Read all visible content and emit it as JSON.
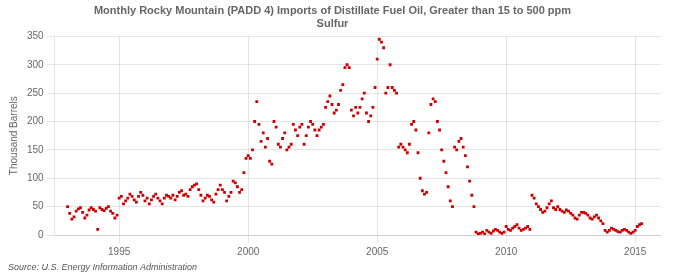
{
  "chart_data": {
    "type": "scatter",
    "title": "Monthly Rocky Mountain (PADD 4) Imports of Distillate Fuel Oil, Greater than 15 to 500 ppm\nSulfur",
    "ylabel": "Thousand Barrels",
    "source": "Source: U.S. Energy Information Administration",
    "color": "#cc0000",
    "marker": "square",
    "grid": true,
    "xlim": [
      1992.5,
      2016.0
    ],
    "ylim": [
      0,
      350
    ],
    "xticks": [
      1995,
      2000,
      2005,
      2010,
      2015
    ],
    "yticks": [
      0,
      50,
      100,
      150,
      200,
      250,
      300,
      350
    ],
    "x": [
      1993.0,
      1993.083,
      1993.167,
      1993.25,
      1993.333,
      1993.417,
      1993.5,
      1993.583,
      1993.667,
      1993.75,
      1993.833,
      1993.917,
      1994.0,
      1994.083,
      1994.167,
      1994.25,
      1994.333,
      1994.417,
      1994.5,
      1994.583,
      1994.667,
      1994.75,
      1994.833,
      1994.917,
      1995.0,
      1995.083,
      1995.167,
      1995.25,
      1995.333,
      1995.417,
      1995.5,
      1995.583,
      1995.667,
      1995.75,
      1995.833,
      1995.917,
      1996.0,
      1996.083,
      1996.167,
      1996.25,
      1996.333,
      1996.417,
      1996.5,
      1996.583,
      1996.667,
      1996.75,
      1996.833,
      1996.917,
      1997.0,
      1997.083,
      1997.167,
      1997.25,
      1997.333,
      1997.417,
      1997.5,
      1997.583,
      1997.667,
      1997.75,
      1997.833,
      1997.917,
      1998.0,
      1998.083,
      1998.167,
      1998.25,
      1998.333,
      1998.417,
      1998.5,
      1998.583,
      1998.667,
      1998.75,
      1998.833,
      1998.917,
      1999.0,
      1999.083,
      1999.167,
      1999.25,
      1999.333,
      1999.417,
      1999.5,
      1999.583,
      1999.667,
      1999.75,
      1999.833,
      1999.917,
      2000.0,
      2000.083,
      2000.167,
      2000.25,
      2000.333,
      2000.417,
      2000.5,
      2000.583,
      2000.667,
      2000.75,
      2000.833,
      2000.917,
      2001.0,
      2001.083,
      2001.167,
      2001.25,
      2001.333,
      2001.417,
      2001.5,
      2001.583,
      2001.667,
      2001.75,
      2001.833,
      2001.917,
      2002.0,
      2002.083,
      2002.167,
      2002.25,
      2002.333,
      2002.417,
      2002.5,
      2002.583,
      2002.667,
      2002.75,
      2002.833,
      2002.917,
      2003.0,
      2003.083,
      2003.167,
      2003.25,
      2003.333,
      2003.417,
      2003.5,
      2003.583,
      2003.667,
      2003.75,
      2003.833,
      2003.917,
      2004.0,
      2004.083,
      2004.167,
      2004.25,
      2004.333,
      2004.417,
      2004.5,
      2004.583,
      2004.667,
      2004.75,
      2004.833,
      2004.917,
      2005.0,
      2005.083,
      2005.167,
      2005.25,
      2005.333,
      2005.417,
      2005.5,
      2005.583,
      2005.667,
      2005.75,
      2005.833,
      2005.917,
      2006.0,
      2006.083,
      2006.167,
      2006.25,
      2006.333,
      2006.417,
      2006.5,
      2006.583,
      2006.667,
      2006.75,
      2006.833,
      2006.917,
      2007.0,
      2007.083,
      2007.167,
      2007.25,
      2007.333,
      2007.417,
      2007.5,
      2007.583,
      2007.667,
      2007.75,
      2007.833,
      2007.917,
      2008.0,
      2008.083,
      2008.167,
      2008.25,
      2008.333,
      2008.417,
      2008.5,
      2008.583,
      2008.667,
      2008.75,
      2008.833,
      2008.917,
      2009.0,
      2009.083,
      2009.167,
      2009.25,
      2009.333,
      2009.417,
      2009.5,
      2009.583,
      2009.667,
      2009.75,
      2009.833,
      2009.917,
      2010.0,
      2010.083,
      2010.167,
      2010.25,
      2010.333,
      2010.417,
      2010.5,
      2010.583,
      2010.667,
      2010.75,
      2010.833,
      2010.917,
      2011.0,
      2011.083,
      2011.167,
      2011.25,
      2011.333,
      2011.417,
      2011.5,
      2011.583,
      2011.667,
      2011.75,
      2011.833,
      2011.917,
      2012.0,
      2012.083,
      2012.167,
      2012.25,
      2012.333,
      2012.417,
      2012.5,
      2012.583,
      2012.667,
      2012.75,
      2012.833,
      2012.917,
      2013.0,
      2013.083,
      2013.167,
      2013.25,
      2013.333,
      2013.417,
      2013.5,
      2013.583,
      2013.667,
      2013.75,
      2013.833,
      2013.917,
      2014.0,
      2014.083,
      2014.167,
      2014.25,
      2014.333,
      2014.417,
      2014.5,
      2014.583,
      2014.667,
      2014.75,
      2014.833,
      2014.917,
      2015.0,
      2015.083,
      2015.167,
      2015.25
    ],
    "values": [
      50,
      38,
      28,
      32,
      42,
      46,
      48,
      40,
      30,
      35,
      44,
      48,
      45,
      42,
      10,
      48,
      45,
      43,
      47,
      50,
      42,
      38,
      30,
      35,
      65,
      68,
      55,
      60,
      65,
      72,
      68,
      62,
      58,
      68,
      75,
      70,
      60,
      65,
      55,
      62,
      68,
      72,
      65,
      60,
      55,
      65,
      70,
      68,
      65,
      70,
      62,
      68,
      75,
      78,
      70,
      72,
      68,
      80,
      85,
      88,
      90,
      80,
      70,
      60,
      65,
      70,
      68,
      62,
      58,
      72,
      80,
      88,
      80,
      75,
      60,
      68,
      75,
      95,
      92,
      85,
      75,
      80,
      110,
      135,
      140,
      135,
      150,
      200,
      235,
      195,
      165,
      180,
      155,
      170,
      130,
      125,
      200,
      190,
      160,
      155,
      170,
      180,
      150,
      155,
      160,
      195,
      185,
      175,
      190,
      195,
      160,
      175,
      190,
      200,
      195,
      185,
      175,
      185,
      190,
      195,
      225,
      235,
      245,
      230,
      215,
      220,
      230,
      255,
      265,
      295,
      300,
      295,
      220,
      210,
      225,
      215,
      225,
      240,
      250,
      215,
      200,
      210,
      225,
      260,
      310,
      345,
      340,
      330,
      250,
      260,
      300,
      260,
      255,
      250,
      155,
      160,
      155,
      150,
      145,
      160,
      195,
      200,
      185,
      145,
      100,
      78,
      72,
      75,
      180,
      230,
      240,
      235,
      200,
      185,
      150,
      130,
      110,
      85,
      60,
      50,
      155,
      150,
      165,
      170,
      155,
      140,
      120,
      95,
      70,
      50,
      5,
      2,
      3,
      5,
      2,
      8,
      5,
      3,
      7,
      10,
      8,
      5,
      3,
      5,
      15,
      10,
      8,
      12,
      15,
      18,
      12,
      8,
      10,
      12,
      15,
      10,
      70,
      65,
      55,
      50,
      45,
      40,
      42,
      48,
      55,
      60,
      48,
      45,
      50,
      45,
      42,
      40,
      44,
      42,
      38,
      35,
      30,
      28,
      35,
      40,
      40,
      38,
      35,
      30,
      28,
      32,
      35,
      30,
      25,
      20,
      8,
      5,
      8,
      12,
      10,
      8,
      6,
      5,
      8,
      10,
      8,
      5,
      3,
      5,
      8,
      15,
      18,
      20
    ]
  }
}
